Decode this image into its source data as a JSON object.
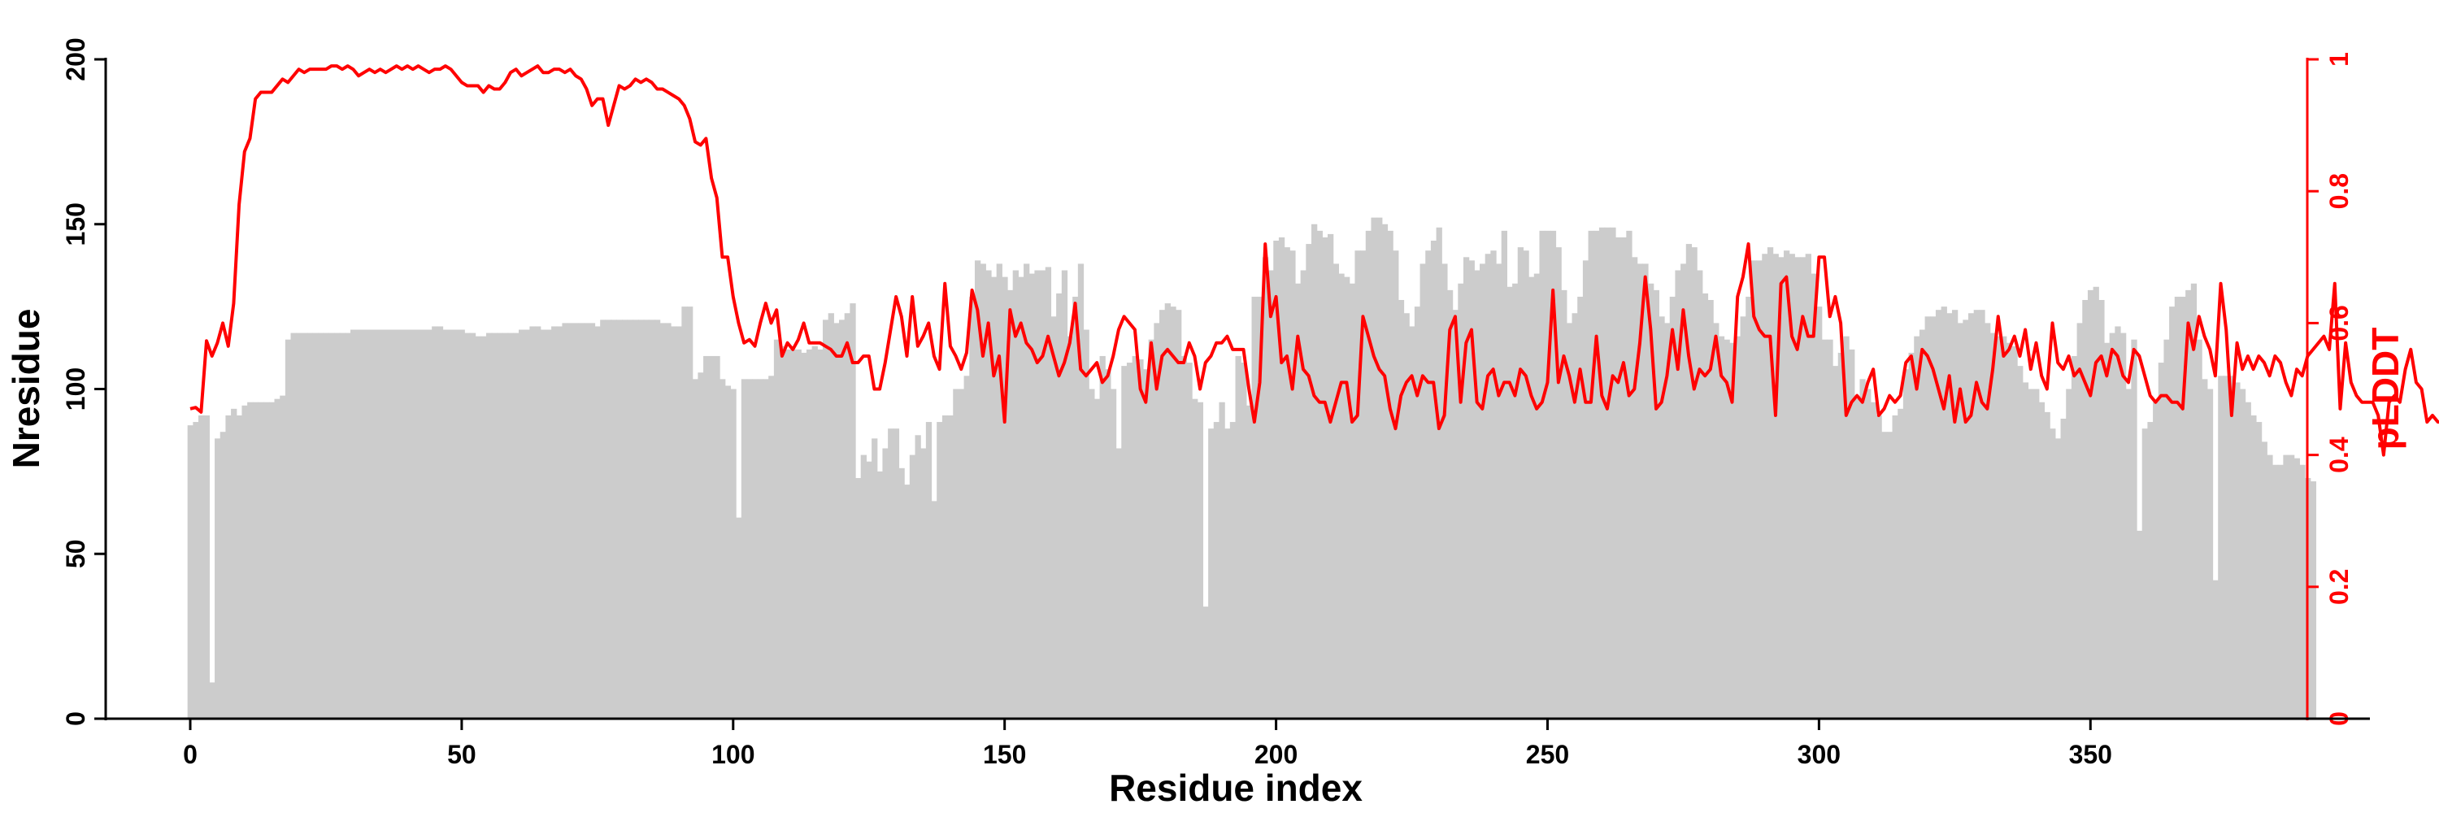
{
  "chart_data": {
    "type": "bar+line",
    "xlabel": "Residue index",
    "ylabel_left": "Nresidue",
    "ylabel_right": "pLDDT",
    "xlim": [
      0,
      385
    ],
    "xticks": [
      0,
      50,
      100,
      150,
      200,
      250,
      300,
      350
    ],
    "ylim_left": [
      0,
      200
    ],
    "yticks_left": [
      0,
      50,
      100,
      150,
      200
    ],
    "ylim_right": [
      0,
      1
    ],
    "yticks_right": [
      0,
      0.2,
      0.4,
      0.6,
      0.8,
      1
    ],
    "ytick_labels_right": [
      "0",
      "0.2",
      "0.4",
      "0.6",
      "0.8",
      "1"
    ],
    "grid": false,
    "colors": {
      "bars": "#cccccc",
      "line": "#ff0000",
      "axis_left": "#000000",
      "axis_right": "#ff0000"
    },
    "series": [
      {
        "type": "bar",
        "axis": "left",
        "values": [
          89,
          90,
          92,
          92,
          11,
          85,
          87,
          92,
          94,
          92,
          95,
          96,
          96,
          96,
          96,
          96,
          97,
          98,
          115,
          117,
          117,
          117,
          117,
          117,
          117,
          117,
          117,
          117,
          117,
          117,
          118,
          118,
          118,
          118,
          118,
          118,
          118,
          118,
          118,
          118,
          118,
          118,
          118,
          118,
          118,
          119,
          119,
          118,
          118,
          118,
          118,
          117,
          117,
          116,
          116,
          117,
          117,
          117,
          117,
          117,
          117,
          118,
          118,
          119,
          119,
          118,
          118,
          119,
          119,
          120,
          120,
          120,
          120,
          120,
          120,
          119,
          121,
          121,
          121,
          121,
          121,
          121,
          121,
          121,
          121,
          121,
          121,
          120,
          120,
          119,
          119,
          125,
          125,
          103,
          105,
          110,
          110,
          110,
          103,
          101,
          100,
          61,
          103,
          103,
          103,
          103,
          103,
          104,
          115,
          113,
          112,
          112,
          112,
          111,
          112,
          113,
          112,
          121,
          123,
          120,
          121,
          123,
          126,
          73,
          80,
          78,
          85,
          75,
          82,
          88,
          88,
          76,
          71,
          80,
          86,
          82,
          90,
          66,
          90,
          92,
          92,
          100,
          100,
          104,
          128,
          139,
          138,
          136,
          134,
          138,
          134,
          130,
          136,
          134,
          138,
          135,
          136,
          136,
          137,
          122,
          129,
          136,
          116,
          128,
          138,
          118,
          100,
          97,
          110,
          106,
          100,
          82,
          107,
          108,
          110,
          109,
          106,
          115,
          120,
          124,
          126,
          125,
          124,
          110,
          108,
          97,
          96,
          34,
          88,
          90,
          96,
          88,
          90,
          110,
          108,
          95,
          128,
          128,
          140,
          136,
          145,
          146,
          143,
          142,
          132,
          136,
          144,
          150,
          148,
          146,
          147,
          138,
          135,
          134,
          132,
          142,
          142,
          148,
          152,
          152,
          150,
          148,
          142,
          127,
          123,
          119,
          125,
          138,
          142,
          145,
          149,
          138,
          130,
          124,
          132,
          140,
          139,
          136,
          138,
          141,
          142,
          138,
          148,
          131,
          132,
          143,
          142,
          134,
          135,
          148,
          148,
          148,
          143,
          130,
          120,
          123,
          128,
          139,
          148,
          148,
          149,
          149,
          149,
          146,
          146,
          148,
          140,
          138,
          138,
          132,
          130,
          122,
          120,
          128,
          136,
          138,
          144,
          143,
          136,
          129,
          127,
          120,
          116,
          115,
          114,
          116,
          122,
          128,
          139,
          139,
          141,
          143,
          141,
          140,
          142,
          141,
          140,
          140,
          141,
          135,
          125,
          115,
          115,
          107,
          111,
          116,
          112,
          97,
          103,
          100,
          96,
          92,
          87,
          87,
          92,
          94,
          106,
          111,
          116,
          118,
          122,
          122,
          124,
          125,
          123,
          124,
          120,
          121,
          123,
          124,
          124,
          120,
          117,
          116,
          116,
          114,
          113,
          107,
          102,
          100,
          100,
          96,
          93,
          88,
          85,
          91,
          100,
          110,
          120,
          127,
          130,
          131,
          127,
          114,
          117,
          119,
          117,
          100,
          115,
          57,
          88,
          90,
          96,
          108,
          115,
          125,
          128,
          128,
          130,
          132,
          115,
          103,
          100,
          42,
          104,
          104,
          104,
          102,
          100,
          96,
          92,
          90,
          84,
          80,
          77,
          77,
          80,
          80,
          79,
          77,
          73,
          72
        ]
      },
      {
        "type": "line",
        "axis": "right",
        "values": [
          0.47,
          0.472,
          0.465,
          0.573,
          0.55,
          0.57,
          0.6,
          0.565,
          0.63,
          0.78,
          0.86,
          0.88,
          0.94,
          0.95,
          0.95,
          0.95,
          0.96,
          0.97,
          0.965,
          0.975,
          0.985,
          0.98,
          0.985,
          0.985,
          0.985,
          0.985,
          0.99,
          0.99,
          0.985,
          0.99,
          0.985,
          0.975,
          0.98,
          0.985,
          0.98,
          0.985,
          0.98,
          0.985,
          0.99,
          0.985,
          0.99,
          0.985,
          0.99,
          0.985,
          0.98,
          0.985,
          0.985,
          0.99,
          0.985,
          0.975,
          0.965,
          0.96,
          0.96,
          0.96,
          0.95,
          0.96,
          0.955,
          0.955,
          0.965,
          0.98,
          0.985,
          0.975,
          0.98,
          0.985,
          0.99,
          0.98,
          0.98,
          0.985,
          0.985,
          0.98,
          0.985,
          0.975,
          0.97,
          0.955,
          0.93,
          0.94,
          0.94,
          0.9,
          0.93,
          0.96,
          0.955,
          0.96,
          0.97,
          0.965,
          0.97,
          0.965,
          0.955,
          0.955,
          0.95,
          0.945,
          0.94,
          0.93,
          0.91,
          0.875,
          0.87,
          0.88,
          0.82,
          0.79,
          0.7,
          0.7,
          0.64,
          0.6,
          0.57,
          0.575,
          0.565,
          0.6,
          0.63,
          0.6,
          0.62,
          0.55,
          0.57,
          0.56,
          0.575,
          0.6,
          0.57,
          0.57,
          0.57,
          0.565,
          0.56,
          0.55,
          0.55,
          0.57,
          0.54,
          0.54,
          0.55,
          0.55,
          0.5,
          0.5,
          0.54,
          0.59,
          0.64,
          0.61,
          0.55,
          0.64,
          0.565,
          0.58,
          0.6,
          0.55,
          0.53,
          0.66,
          0.565,
          0.55,
          0.53,
          0.555,
          0.65,
          0.62,
          0.55,
          0.6,
          0.52,
          0.55,
          0.45,
          0.62,
          0.58,
          0.6,
          0.57,
          0.56,
          0.54,
          0.55,
          0.58,
          0.55,
          0.52,
          0.54,
          0.57,
          0.63,
          0.53,
          0.52,
          0.53,
          0.54,
          0.51,
          0.52,
          0.55,
          0.59,
          0.61,
          0.6,
          0.59,
          0.5,
          0.48,
          0.57,
          0.5,
          0.55,
          0.56,
          0.55,
          0.54,
          0.54,
          0.57,
          0.55,
          0.5,
          0.54,
          0.55,
          0.57,
          0.57,
          0.58,
          0.56,
          0.56,
          0.56,
          0.5,
          0.45,
          0.51,
          0.72,
          0.61,
          0.64,
          0.54,
          0.55,
          0.5,
          0.58,
          0.53,
          0.52,
          0.49,
          0.48,
          0.48,
          0.45,
          0.48,
          0.51,
          0.51,
          0.45,
          0.46,
          0.61,
          0.58,
          0.55,
          0.53,
          0.52,
          0.47,
          0.44,
          0.49,
          0.51,
          0.52,
          0.49,
          0.52,
          0.51,
          0.51,
          0.44,
          0.46,
          0.59,
          0.61,
          0.48,
          0.57,
          0.59,
          0.48,
          0.47,
          0.52,
          0.53,
          0.49,
          0.51,
          0.51,
          0.49,
          0.53,
          0.52,
          0.49,
          0.47,
          0.48,
          0.51,
          0.65,
          0.51,
          0.55,
          0.52,
          0.48,
          0.53,
          0.48,
          0.48,
          0.58,
          0.49,
          0.47,
          0.52,
          0.51,
          0.54,
          0.49,
          0.5,
          0.57,
          0.67,
          0.59,
          0.47,
          0.48,
          0.52,
          0.59,
          0.53,
          0.62,
          0.55,
          0.5,
          0.53,
          0.52,
          0.53,
          0.58,
          0.52,
          0.51,
          0.48,
          0.64,
          0.67,
          0.72,
          0.61,
          0.59,
          0.58,
          0.58,
          0.46,
          0.66,
          0.67,
          0.58,
          0.56,
          0.61,
          0.58,
          0.58,
          0.7,
          0.7,
          0.61,
          0.64,
          0.6,
          0.46,
          0.48,
          0.49,
          0.48,
          0.51,
          0.53,
          0.46,
          0.47,
          0.49,
          0.48,
          0.49,
          0.54,
          0.55,
          0.5,
          0.56,
          0.55,
          0.53,
          0.5,
          0.47,
          0.52,
          0.45,
          0.5,
          0.45,
          0.46,
          0.51,
          0.48,
          0.47,
          0.53,
          0.61,
          0.55,
          0.56,
          0.58,
          0.55,
          0.59,
          0.53,
          0.57,
          0.52,
          0.5,
          0.6,
          0.54,
          0.53,
          0.55,
          0.52,
          0.53,
          0.51,
          0.49,
          0.54,
          0.55,
          0.52,
          0.56,
          0.55,
          0.52,
          0.51,
          0.56,
          0.55,
          0.52,
          0.49,
          0.48,
          0.49,
          0.49,
          0.48,
          0.48,
          0.47,
          0.6,
          0.56,
          0.61,
          0.58,
          0.56,
          0.52,
          0.66,
          0.59,
          0.46,
          0.57,
          0.53,
          0.55,
          0.53,
          0.55,
          0.54,
          0.52,
          0.55,
          0.54,
          0.51,
          0.49,
          0.53,
          0.52,
          0.55,
          0.56,
          0.57,
          0.58,
          0.56,
          0.66,
          0.47,
          0.57,
          0.51,
          0.49,
          0.48,
          0.48,
          0.48,
          0.46,
          0.4,
          0.48,
          0.49,
          0.48,
          0.53,
          0.56,
          0.51,
          0.5,
          0.45,
          0.46,
          0.45,
          0.45,
          0.44,
          0.47,
          0.51,
          0.4,
          0.47,
          0.54,
          0.46,
          0.54,
          0.38,
          0.37
        ]
      }
    ]
  }
}
